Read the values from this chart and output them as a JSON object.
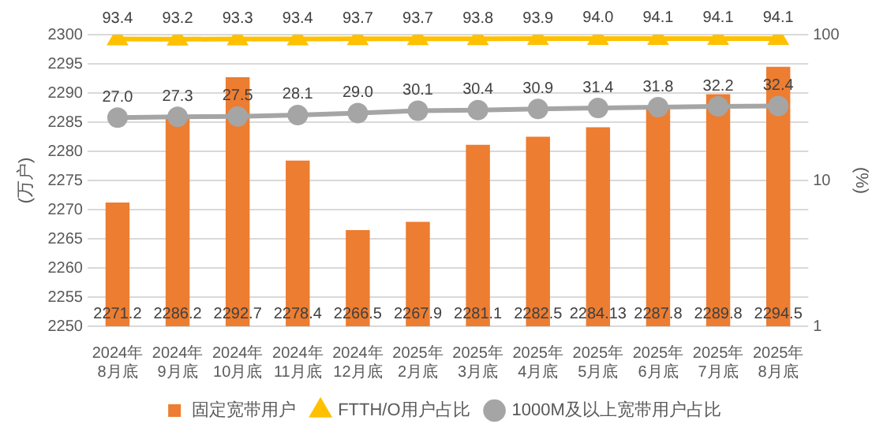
{
  "chart_data": {
    "type": "bar",
    "categories": [
      "2024年\n8月底",
      "2024年\n9月底",
      "2024年\n10月底",
      "2024年\n11月底",
      "2024年\n12月底",
      "2025年\n2月底",
      "2025年\n3月底",
      "2025年\n4月底",
      "2025年\n5月底",
      "2025年\n6月底",
      "2025年\n7月底",
      "2025年\n8月底"
    ],
    "series": [
      {
        "name": "固定宽带用户",
        "color": "#ed7d31",
        "values": [
          2271.2,
          2286.2,
          2292.7,
          2278.4,
          2266.5,
          2267.9,
          2281.1,
          2282.5,
          2284.13,
          2287.8,
          2289.8,
          2294.5
        ]
      },
      {
        "name": "FTTH/O用户占比",
        "type": "line",
        "axis": "y2",
        "marker": "triangle",
        "color": "#ffc000",
        "values": [
          93.4,
          93.2,
          93.3,
          93.4,
          93.7,
          93.7,
          93.8,
          93.9,
          94.0,
          94.1,
          94.1,
          94.1
        ],
        "value_labels": [
          "93.4",
          "93.2",
          "93.3",
          "93.4",
          "93.7",
          "93.7",
          "93.8",
          "93.9",
          "94.0",
          "94.1",
          "94.1",
          "94.1"
        ]
      },
      {
        "name": "1000M及以上宽带用户占比",
        "type": "line",
        "axis": "y2",
        "marker": "circle",
        "color": "#a5a5a5",
        "values": [
          27.0,
          27.3,
          27.5,
          28.1,
          29.0,
          30.1,
          30.4,
          30.9,
          31.4,
          31.8,
          32.2,
          32.4
        ],
        "value_labels": [
          "27.0",
          "27.3",
          "27.5",
          "28.1",
          "29.0",
          "30.1",
          "30.4",
          "30.9",
          "31.4",
          "31.8",
          "32.2",
          "32.4"
        ]
      }
    ],
    "ylabel": "(万户)",
    "y2label": "(%)",
    "ylim": [
      2250,
      2300
    ],
    "yticks": [
      2250,
      2255,
      2260,
      2265,
      2270,
      2275,
      2280,
      2285,
      2290,
      2295,
      2300
    ],
    "y2lim": [
      1,
      100
    ],
    "y2ticks": [
      1,
      10,
      100
    ],
    "log": "y2",
    "grid": "y",
    "legend": "bottom",
    "data_labels": true
  }
}
